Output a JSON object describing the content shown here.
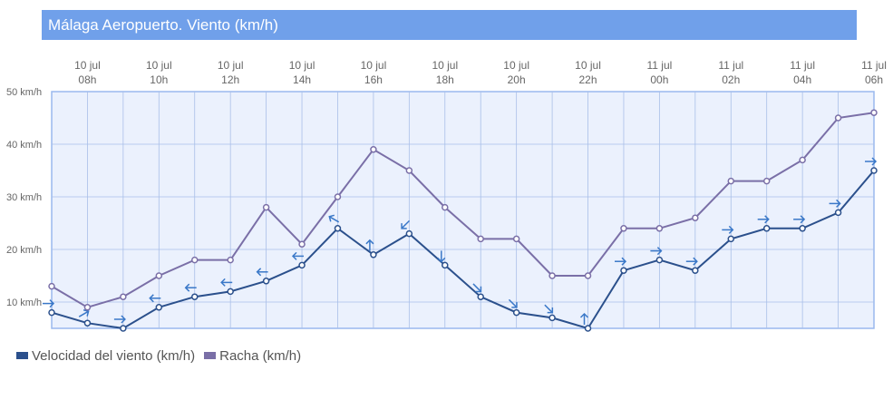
{
  "title": "Málaga Aeropuerto. Viento (km/h)",
  "colors": {
    "title_bg": "#70a0ea",
    "plot_bg": "#ebf1fd",
    "plot_border": "#9ab8ee",
    "grid": "#a9bfe8",
    "wind": "#2b508c",
    "gust": "#7a6fa7",
    "arrow": "#3a78c8"
  },
  "chart_data": {
    "type": "line",
    "x_tick_labels": [
      {
        "day": "10 jul",
        "hour": "08h"
      },
      {
        "day": "10 jul",
        "hour": "10h"
      },
      {
        "day": "10 jul",
        "hour": "12h"
      },
      {
        "day": "10 jul",
        "hour": "14h"
      },
      {
        "day": "10 jul",
        "hour": "16h"
      },
      {
        "day": "10 jul",
        "hour": "18h"
      },
      {
        "day": "10 jul",
        "hour": "20h"
      },
      {
        "day": "10 jul",
        "hour": "22h"
      },
      {
        "day": "11 jul",
        "hour": "00h"
      },
      {
        "day": "11 jul",
        "hour": "02h"
      },
      {
        "day": "11 jul",
        "hour": "04h"
      },
      {
        "day": "11 jul",
        "hour": "06h"
      }
    ],
    "x": [
      "10 jul 07h",
      "10 jul 08h",
      "10 jul 09h",
      "10 jul 10h",
      "10 jul 11h",
      "10 jul 12h",
      "10 jul 13h",
      "10 jul 14h",
      "10 jul 15h",
      "10 jul 16h",
      "10 jul 17h",
      "10 jul 18h",
      "10 jul 19h",
      "10 jul 20h",
      "10 jul 21h",
      "10 jul 22h",
      "10 jul 23h",
      "11 jul 00h",
      "11 jul 01h",
      "11 jul 02h",
      "11 jul 03h",
      "11 jul 04h",
      "11 jul 05h",
      "11 jul 06h"
    ],
    "y_ticks": [
      "10 km/h",
      "20 km/h",
      "30 km/h",
      "40 km/h",
      "50 km/h"
    ],
    "ylim": [
      5,
      50
    ],
    "series": [
      {
        "name": "Velocidad del viento (km/h)",
        "values": [
          8,
          6,
          5,
          9,
          11,
          12,
          14,
          17,
          24,
          19,
          23,
          17,
          11,
          8,
          7,
          5,
          16,
          18,
          16,
          22,
          24,
          24,
          27,
          35
        ],
        "direction_arrows_deg": [
          90,
          60,
          90,
          270,
          270,
          270,
          270,
          270,
          300,
          0,
          225,
          180,
          135,
          135,
          135,
          0,
          90,
          90,
          90,
          90,
          90,
          90,
          90,
          90
        ]
      },
      {
        "name": "Racha (km/h)",
        "values": [
          13,
          9,
          11,
          15,
          18,
          18,
          28,
          21,
          30,
          39,
          35,
          28,
          22,
          22,
          15,
          15,
          24,
          24,
          26,
          33,
          33,
          37,
          45,
          46
        ]
      }
    ],
    "grid": true,
    "legend_position": "bottom-left"
  }
}
